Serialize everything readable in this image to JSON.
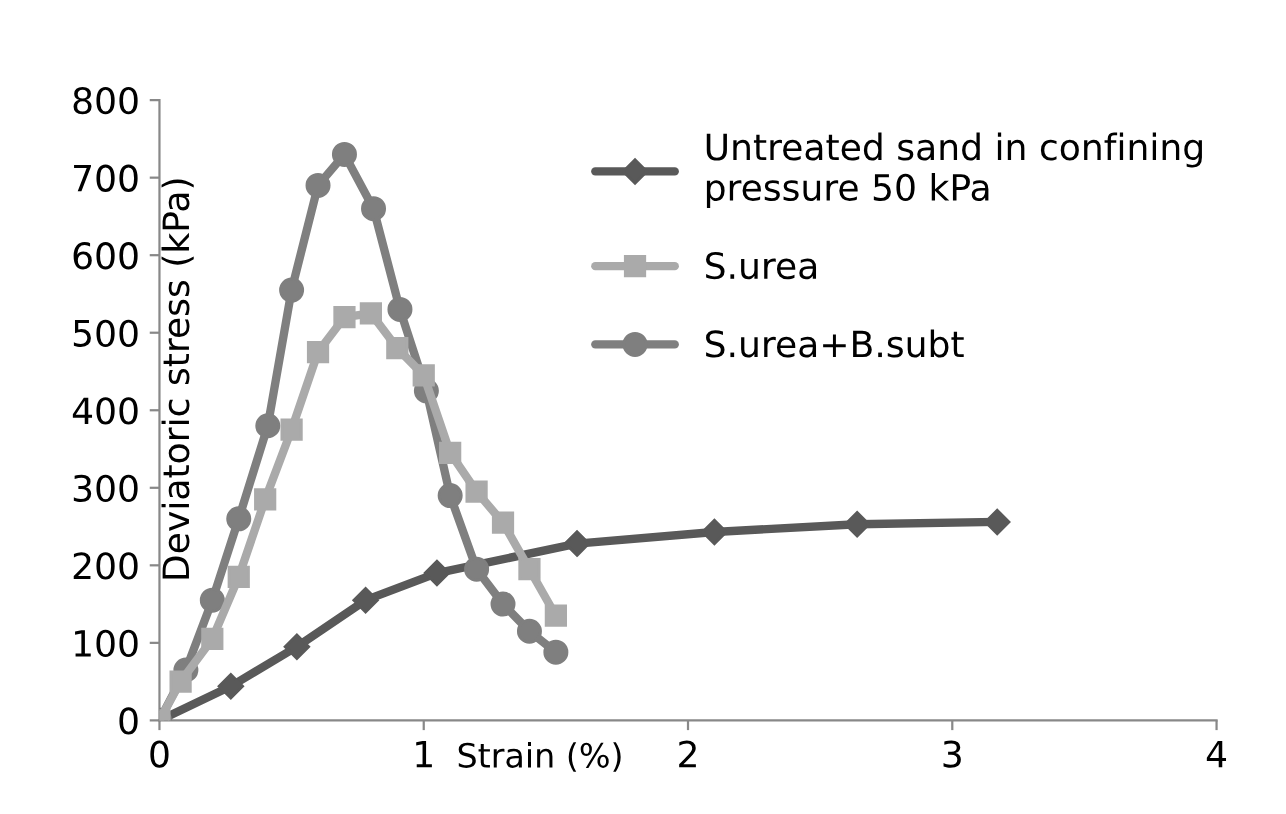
{
  "chart_data": {
    "type": "line",
    "xlabel": "Strain (%)",
    "ylabel": "Deviatoric stress (kPa)",
    "xlim": [
      0,
      4
    ],
    "xticks": [
      0,
      1,
      2,
      3,
      4
    ],
    "ylim": [
      0,
      800
    ],
    "yticks": [
      0,
      100,
      200,
      300,
      400,
      500,
      600,
      700,
      800
    ],
    "grid": false,
    "legend": "top right",
    "line_style": "solid",
    "series": [
      {
        "name": "Untreated sand in confining\npressure 50 kPa",
        "color": "#595959",
        "marker": "diamond",
        "x": [
          0,
          0.27,
          0.52,
          0.78,
          1.05,
          1.58,
          2.1,
          2.64,
          3.17
        ],
        "values": [
          0,
          44,
          95,
          155,
          190,
          228,
          243,
          253,
          256
        ]
      },
      {
        "name": "S.urea",
        "color": "#aaaaaa",
        "marker": "square",
        "x": [
          0,
          0.08,
          0.2,
          0.3,
          0.4,
          0.5,
          0.6,
          0.7,
          0.8,
          0.9,
          1.0,
          1.1,
          1.2,
          1.3,
          1.4,
          1.5
        ],
        "values": [
          0,
          50,
          105,
          185,
          285,
          375,
          475,
          520,
          525,
          480,
          445,
          345,
          295,
          255,
          195,
          135
        ]
      },
      {
        "name": "S.urea+B.subt",
        "color": "#7f7f7f",
        "marker": "circle",
        "x": [
          0,
          0.1,
          0.2,
          0.3,
          0.41,
          0.5,
          0.6,
          0.7,
          0.81,
          0.91,
          1.01,
          1.1,
          1.2,
          1.3,
          1.4,
          1.5
        ],
        "values": [
          0,
          65,
          155,
          260,
          380,
          555,
          690,
          730,
          660,
          530,
          425,
          290,
          195,
          150,
          115,
          88
        ]
      }
    ]
  }
}
